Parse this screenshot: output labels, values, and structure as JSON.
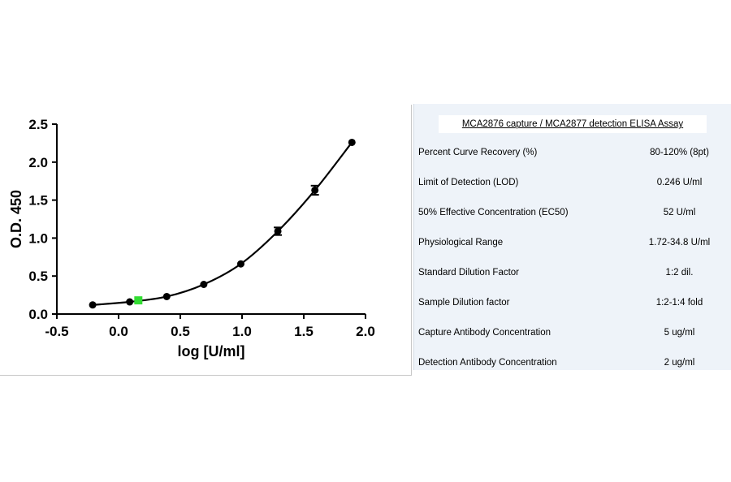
{
  "chart_data": {
    "type": "scatter",
    "xlabel": "log [U/ml]",
    "ylabel": "O.D. 450",
    "xlim": [
      -0.5,
      2.0
    ],
    "ylim": [
      0.0,
      2.5
    ],
    "xticks": [
      "-0.5",
      "0.0",
      "0.5",
      "1.0",
      "1.5",
      "2.0"
    ],
    "yticks": [
      "0.0",
      "0.5",
      "1.0",
      "1.5",
      "2.0",
      "2.5"
    ],
    "grid": false,
    "points": [
      {
        "x": -0.21,
        "y": 0.12,
        "err": 0,
        "color": "#000000"
      },
      {
        "x": 0.09,
        "y": 0.16,
        "err": 0,
        "color": "#000000"
      },
      {
        "x": 0.39,
        "y": 0.23,
        "err": 0,
        "color": "#000000"
      },
      {
        "x": 0.69,
        "y": 0.39,
        "err": 0,
        "color": "#000000"
      },
      {
        "x": 0.99,
        "y": 0.66,
        "err": 0,
        "color": "#000000"
      },
      {
        "x": 1.29,
        "y": 1.09,
        "err": 0.05,
        "color": "#000000"
      },
      {
        "x": 1.59,
        "y": 1.63,
        "err": 0.06,
        "color": "#000000"
      },
      {
        "x": 1.89,
        "y": 2.26,
        "err": 0,
        "color": "#000000"
      },
      {
        "x": 0.16,
        "y": 0.18,
        "err": 0,
        "color": "#33dd33",
        "marker": "square"
      }
    ],
    "curve_color": "#000000"
  },
  "table": {
    "title": "MCA2876 capture / MCA2877 detection ELISA Assay",
    "rows": [
      {
        "label": "Percent Curve Recovery (%)",
        "value": "80-120% (8pt)"
      },
      {
        "label": "Limit of Detection (LOD)",
        "value": "0.246 U/ml"
      },
      {
        "label": "50% Effective Concentration (EC50)",
        "value": "52 U/ml"
      },
      {
        "label": "Physiological Range",
        "value": "1.72-34.8 U/ml"
      },
      {
        "label": "Standard Dilution Factor",
        "value": "1:2 dil."
      },
      {
        "label": "Sample Dilution factor",
        "value": "1:2-1:4 fold"
      },
      {
        "label": "Capture Antibody Concentration",
        "value": "5 ug/ml"
      },
      {
        "label": "Detection Antibody Concentration",
        "value": "2 ug/ml"
      }
    ]
  }
}
